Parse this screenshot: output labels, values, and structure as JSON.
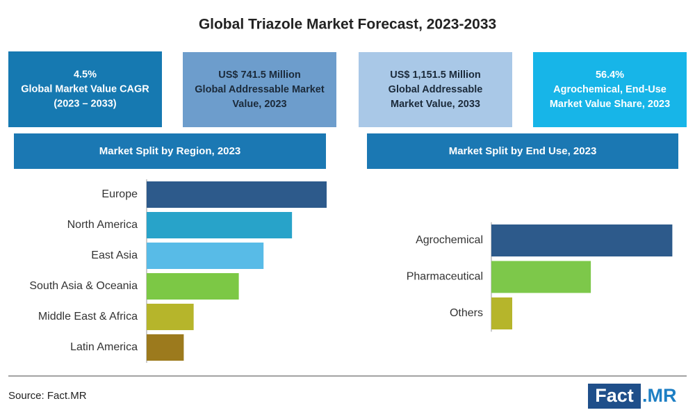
{
  "title": "Global Triazole Market Forecast, 2023-2033",
  "stats": [
    {
      "lines": [
        "4.5%",
        "Global Market Value CAGR",
        "(2023 – 2033)"
      ],
      "color": "#1679b1",
      "text_color": "#ffffff"
    },
    {
      "lines": [
        "US$ 741.5 Million",
        "Global Addressable Market",
        "Value, 2023"
      ],
      "color": "#6d9dcc",
      "text_color": "#1b2a3a"
    },
    {
      "lines": [
        "US$ 1,151.5 Million",
        "Global Addressable",
        "Market Value, 2033"
      ],
      "color": "#a9c8e7",
      "text_color": "#1b2a3a"
    },
    {
      "lines": [
        "56.4%",
        "Agrochemical, End-Use",
        "Market Value Share, 2023"
      ],
      "color": "#17b5e8",
      "text_color": "#ffffff"
    }
  ],
  "chart_data": [
    {
      "type": "bar",
      "orientation": "horizontal",
      "title": "Market Split by Region, 2023",
      "categories": [
        "Europe",
        "North America",
        "East Asia",
        "South Asia & Oceania",
        "Middle East & Africa",
        "Latin America"
      ],
      "values": [
        29.1,
        23.5,
        18.9,
        14.9,
        7.6,
        6.0
      ],
      "colors": [
        "#2d5a8b",
        "#28a3c9",
        "#58bbe7",
        "#7cc845",
        "#b6b52b",
        "#9c7a1d"
      ],
      "xlim": [
        0,
        30
      ]
    },
    {
      "type": "bar",
      "orientation": "horizontal",
      "title": "Market Split by End Use, 2023",
      "categories": [
        "Agrochemical",
        "Pharmaceutical",
        "Others"
      ],
      "values": [
        56.4,
        31,
        6.5
      ],
      "colors": [
        "#2d5a8b",
        "#7dc84a",
        "#b6b52b"
      ],
      "xlim": [
        0,
        60
      ]
    }
  ],
  "source": "Source: Fact.MR",
  "logo": {
    "left": "Fact",
    "right": ".MR"
  }
}
